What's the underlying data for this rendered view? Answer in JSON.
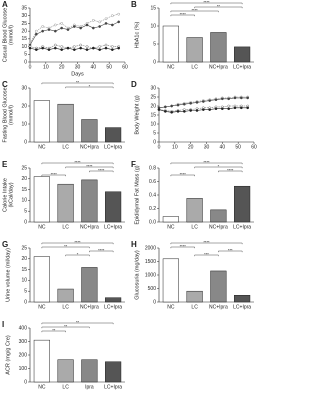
{
  "chart_data": [
    {
      "type": "line",
      "panel": "A",
      "ylabel": [
        "Casual Blood Glucose",
        "(mmol/l)"
      ],
      "xlabel": "Days",
      "x": [
        0,
        4,
        8,
        12,
        16,
        20,
        24,
        28,
        32,
        36,
        40,
        44,
        48,
        52,
        56
      ],
      "series": [
        {
          "color": "#999999",
          "marker": "open",
          "values": [
            12,
            20,
            23,
            22,
            24,
            25,
            22,
            24,
            23,
            25,
            27,
            26,
            28,
            30,
            31
          ]
        },
        {
          "color": "#444444",
          "marker": "filled",
          "values": [
            11,
            18,
            20,
            21,
            20,
            22,
            21,
            23,
            22,
            24,
            22,
            23,
            25,
            24,
            26
          ]
        },
        {
          "color": "#777777",
          "marker": "open",
          "values": [
            10,
            9,
            10,
            9,
            11,
            10,
            9,
            10,
            11,
            10,
            9,
            10,
            11,
            10,
            10
          ]
        },
        {
          "color": "#222222",
          "marker": "filled",
          "values": [
            9,
            8,
            9,
            8,
            9,
            8,
            9,
            8,
            9,
            8,
            9,
            8,
            9,
            8,
            9
          ]
        }
      ],
      "xlim": [
        0,
        60
      ],
      "xticks": [
        0,
        10,
        20,
        30,
        40,
        50,
        60
      ],
      "ylim": [
        0,
        35
      ],
      "yticks": [
        0,
        5,
        10,
        15,
        20,
        25,
        30,
        35
      ]
    },
    {
      "type": "bar",
      "panel": "B",
      "ylabel": [
        "HbA1c (%)"
      ],
      "categories": [
        "NC",
        "LC",
        "NC+Ipra",
        "LC+Ipra"
      ],
      "values": [
        10,
        6.8,
        8.2,
        4.2
      ],
      "colors": [
        "#ffffff",
        "#aaaaaa",
        "#888888",
        "#555555"
      ],
      "ylim": [
        0,
        15
      ],
      "yticks": [
        0,
        5,
        10,
        15
      ],
      "significance": [
        {
          "between": [
            "NC",
            "LC+Ipra"
          ],
          "label": "****"
        },
        {
          "between": [
            "LC",
            "LC+Ipra"
          ],
          "label": "**"
        },
        {
          "between": [
            "NC",
            "NC+Ipra"
          ],
          "label": "****"
        },
        {
          "between": [
            "NC",
            "LC"
          ],
          "label": "****"
        }
      ]
    },
    {
      "type": "bar",
      "panel": "C",
      "ylabel": [
        "Fasting Blood Glucose",
        "(mmol/l)"
      ],
      "categories": [
        "NC",
        "LC",
        "NC+Ipra",
        "LC+Ipra"
      ],
      "values": [
        23,
        21,
        12.5,
        8
      ],
      "colors": [
        "#ffffff",
        "#aaaaaa",
        "#888888",
        "#555555"
      ],
      "ylim": [
        0,
        30
      ],
      "yticks": [
        0,
        10,
        20,
        30
      ],
      "significance": [
        {
          "between": [
            "NC",
            "LC+Ipra"
          ],
          "label": "**"
        },
        {
          "between": [
            "LC",
            "LC+Ipra"
          ],
          "label": "*"
        }
      ]
    },
    {
      "type": "line",
      "panel": "D",
      "ylabel": [
        "Body Weight (g)"
      ],
      "x": [
        0,
        4,
        8,
        12,
        16,
        20,
        24,
        28,
        32,
        36,
        40,
        44,
        48,
        52,
        56
      ],
      "series": [
        {
          "color": "#999999",
          "marker": "open",
          "values": [
            19,
            19.5,
            20,
            21,
            21.5,
            22,
            22.5,
            23,
            23.5,
            24,
            24.5,
            24.5,
            25,
            25,
            25
          ]
        },
        {
          "color": "#444444",
          "marker": "filled",
          "values": [
            19,
            19.5,
            20,
            20.5,
            21,
            21.5,
            22,
            22.5,
            23,
            23.5,
            24,
            24,
            24.5,
            24.5,
            24.5
          ]
        },
        {
          "color": "#777777",
          "marker": "open",
          "values": [
            18,
            17.5,
            17,
            17.5,
            18,
            18,
            18.5,
            19,
            19,
            19.5,
            19.5,
            20,
            20,
            20,
            20
          ]
        },
        {
          "color": "#222222",
          "marker": "filled",
          "values": [
            18,
            17,
            16.5,
            17,
            17,
            17.5,
            17.5,
            18,
            18,
            18.5,
            18.5,
            18.5,
            19,
            19,
            19
          ]
        }
      ],
      "xlim": [
        0,
        60
      ],
      "xticks": [
        0,
        10,
        20,
        30,
        40,
        50,
        60
      ],
      "ylim": [
        0,
        30
      ],
      "yticks": [
        0,
        5,
        10,
        15,
        20,
        25,
        30
      ]
    },
    {
      "type": "bar",
      "panel": "E",
      "ylabel": [
        "Calorie Intake",
        "(kCal/day)"
      ],
      "categories": [
        "NC",
        "LC",
        "NC+Ipra",
        "LC+Ipra"
      ],
      "values": [
        21,
        17.5,
        19.5,
        14
      ],
      "colors": [
        "#ffffff",
        "#aaaaaa",
        "#888888",
        "#555555"
      ],
      "ylim": [
        0,
        25
      ],
      "yticks": [
        0,
        5,
        10,
        15,
        20,
        25
      ],
      "significance": [
        {
          "between": [
            "NC",
            "LC+Ipra"
          ],
          "label": "****"
        },
        {
          "between": [
            "LC",
            "LC+Ipra"
          ],
          "label": "****"
        },
        {
          "between": [
            "NC+Ipra",
            "LC+Ipra"
          ],
          "label": "****"
        },
        {
          "between": [
            "NC",
            "LC"
          ],
          "label": "****"
        }
      ]
    },
    {
      "type": "bar",
      "panel": "F",
      "ylabel": [
        "Epididymal Fat Mass (g)"
      ],
      "categories": [
        "NC",
        "LC",
        "NC+Ipra",
        "LC+Ipra"
      ],
      "values": [
        0.08,
        0.35,
        0.18,
        0.53
      ],
      "colors": [
        "#ffffff",
        "#aaaaaa",
        "#888888",
        "#555555"
      ],
      "ylim": [
        0,
        0.8
      ],
      "yticks": [
        {
          "value": 0,
          "label": "0.0"
        },
        0.2,
        0.4,
        0.6,
        0.8
      ],
      "significance": [
        {
          "between": [
            "NC",
            "LC+Ipra"
          ],
          "label": "****"
        },
        {
          "between": [
            "LC",
            "LC+Ipra"
          ],
          "label": "*"
        },
        {
          "between": [
            "NC+Ipra",
            "LC+Ipra"
          ],
          "label": "****"
        },
        {
          "between": [
            "NC",
            "LC"
          ],
          "label": "****"
        }
      ]
    },
    {
      "type": "bar",
      "panel": "G",
      "ylabel": [
        "Urine volume (ml/day)"
      ],
      "categories": [
        "NC",
        "LC",
        "NC+Ipra",
        "LC+Ipra"
      ],
      "values": [
        21,
        6,
        16,
        2
      ],
      "colors": [
        "#ffffff",
        "#aaaaaa",
        "#888888",
        "#555555"
      ],
      "ylim": [
        0,
        25
      ],
      "yticks": [
        0,
        5,
        10,
        15,
        20,
        25
      ],
      "significance": [
        {
          "between": [
            "NC",
            "LC+Ipra"
          ],
          "label": "****"
        },
        {
          "between": [
            "NC",
            "NC+Ipra"
          ],
          "label": "**"
        },
        {
          "between": [
            "NC+Ipra",
            "LC+Ipra"
          ],
          "label": "****"
        },
        {
          "between": [
            "LC",
            "NC+Ipra"
          ],
          "label": "*"
        }
      ]
    },
    {
      "type": "bar",
      "panel": "H",
      "ylabel": [
        "Glucosuria (mg/day)"
      ],
      "categories": [
        "NC",
        "LC",
        "NC+Ipra",
        "LC+Ipra"
      ],
      "values": [
        1600,
        400,
        1150,
        250
      ],
      "colors": [
        "#ffffff",
        "#aaaaaa",
        "#888888",
        "#555555"
      ],
      "ylim": [
        0,
        2000
      ],
      "yticks": [
        0,
        500,
        1000,
        1500,
        2000
      ],
      "significance": [
        {
          "between": [
            "NC",
            "LC+Ipra"
          ],
          "label": "****"
        },
        {
          "between": [
            "NC",
            "LC"
          ],
          "label": "****"
        },
        {
          "between": [
            "NC+Ipra",
            "LC+Ipra"
          ],
          "label": "***"
        },
        {
          "between": [
            "LC",
            "NC+Ipra"
          ],
          "label": "***"
        }
      ]
    },
    {
      "type": "bar",
      "panel": "I",
      "ylabel": [
        "ACR (mg/g Cre)"
      ],
      "categories": [
        "NC",
        "LC",
        "Ipra",
        "LC+Ipra"
      ],
      "values": [
        310,
        165,
        165,
        150
      ],
      "colors": [
        "#ffffff",
        "#aaaaaa",
        "#888888",
        "#555555"
      ],
      "ylim": [
        0,
        400
      ],
      "yticks": [
        0,
        100,
        200,
        300,
        400
      ],
      "significance": [
        {
          "between": [
            "NC",
            "LC+Ipra"
          ],
          "label": "**"
        },
        {
          "between": [
            "NC",
            "Ipra"
          ],
          "label": "**"
        },
        {
          "between": [
            "NC",
            "LC"
          ],
          "label": "**"
        }
      ]
    }
  ]
}
